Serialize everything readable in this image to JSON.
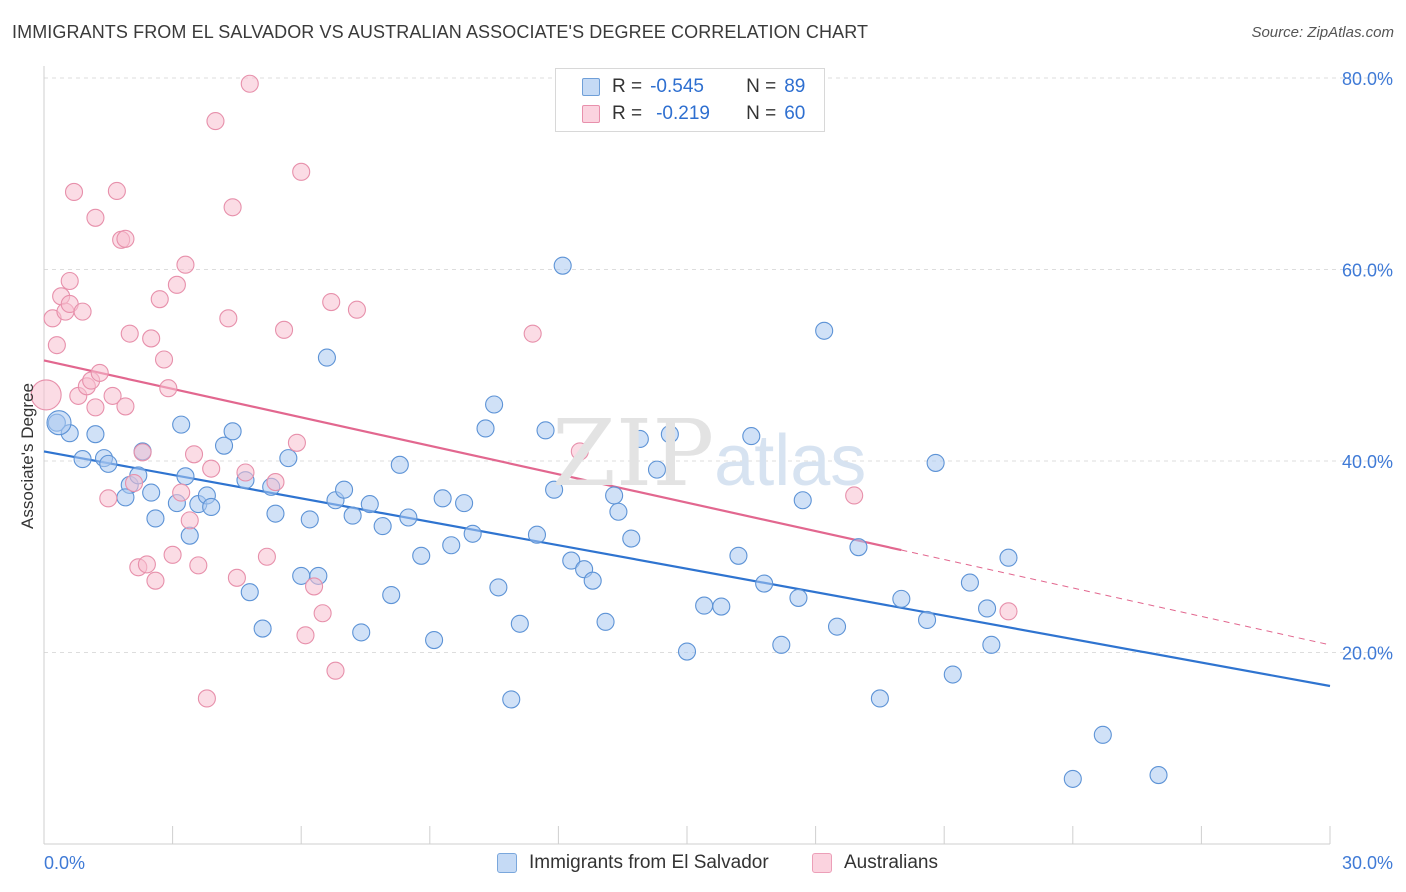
{
  "title": "IMMIGRANTS FROM EL SALVADOR VS AUSTRALIAN ASSOCIATE'S DEGREE CORRELATION CHART",
  "source": "Source: ZipAtlas.com",
  "watermark": {
    "zip": "ZIP",
    "atlas": "atlas"
  },
  "legend": {
    "r_label": "R =",
    "n_label": "N =",
    "rows": [
      {
        "r": "-0.545",
        "n": "89",
        "color": "#a9c8f0",
        "border": "#6f9fd8"
      },
      {
        "r": "-0.219",
        "n": "60",
        "color": "#f7c0d0",
        "border": "#e890ac"
      }
    ]
  },
  "bottom_legend": [
    {
      "label": "Immigrants from El Salvador",
      "color": "#c5daf5",
      "border": "#7aa7dc"
    },
    {
      "label": "Australians",
      "color": "#fbd3df",
      "border": "#ec9fb8"
    }
  ],
  "chart_data": {
    "type": "scatter",
    "title": "IMMIGRANTS FROM EL SALVADOR VS AUSTRALIAN ASSOCIATE'S DEGREE CORRELATION CHART",
    "xlabel": "",
    "ylabel": "Associate's Degree",
    "xlim": [
      0,
      30
    ],
    "ylim": [
      0,
      80
    ],
    "x_tick_labels": [
      "0.0%",
      "30.0%"
    ],
    "y_tick_labels": [
      "20.0%",
      "40.0%",
      "60.0%",
      "80.0%"
    ],
    "y_ticks": [
      20,
      40,
      60,
      80
    ],
    "grid": true,
    "series": [
      {
        "name": "Immigrants from El Salvador",
        "color": "#a9c8f0",
        "stroke": "#5d93d6",
        "trend_color": "#2f74d0",
        "trend": {
          "x0": 0,
          "y0": 41.0,
          "x1": 30,
          "y1": 16.5,
          "dash_from": null
        },
        "points": [
          [
            0.3,
            44.0
          ],
          [
            0.6,
            42.9
          ],
          [
            0.9,
            40.2
          ],
          [
            1.2,
            42.8
          ],
          [
            1.4,
            40.3
          ],
          [
            1.5,
            39.7
          ],
          [
            2.0,
            37.5
          ],
          [
            2.2,
            38.5
          ],
          [
            1.9,
            36.2
          ],
          [
            2.5,
            36.7
          ],
          [
            2.3,
            41.0
          ],
          [
            2.6,
            34.0
          ],
          [
            3.2,
            43.8
          ],
          [
            3.3,
            38.4
          ],
          [
            3.1,
            35.6
          ],
          [
            3.4,
            32.2
          ],
          [
            3.6,
            35.5
          ],
          [
            3.8,
            36.4
          ],
          [
            3.9,
            35.2
          ],
          [
            4.2,
            41.6
          ],
          [
            4.4,
            43.1
          ],
          [
            4.7,
            38.0
          ],
          [
            4.8,
            26.3
          ],
          [
            5.3,
            37.3
          ],
          [
            5.4,
            34.5
          ],
          [
            5.1,
            22.5
          ],
          [
            5.7,
            40.3
          ],
          [
            6.0,
            28.0
          ],
          [
            6.2,
            33.9
          ],
          [
            6.4,
            28.0
          ],
          [
            6.6,
            50.8
          ],
          [
            6.8,
            35.9
          ],
          [
            7.0,
            37.0
          ],
          [
            7.2,
            34.3
          ],
          [
            7.4,
            22.1
          ],
          [
            7.6,
            35.5
          ],
          [
            7.9,
            33.2
          ],
          [
            8.1,
            26.0
          ],
          [
            8.3,
            39.6
          ],
          [
            8.5,
            34.1
          ],
          [
            8.8,
            30.1
          ],
          [
            9.1,
            21.3
          ],
          [
            9.3,
            36.1
          ],
          [
            9.5,
            31.2
          ],
          [
            9.8,
            35.6
          ],
          [
            10.0,
            32.4
          ],
          [
            10.3,
            43.4
          ],
          [
            10.5,
            45.9
          ],
          [
            10.6,
            26.8
          ],
          [
            10.9,
            15.1
          ],
          [
            11.1,
            23.0
          ],
          [
            11.5,
            32.3
          ],
          [
            11.7,
            43.2
          ],
          [
            11.9,
            37.0
          ],
          [
            12.1,
            60.4
          ],
          [
            12.3,
            29.6
          ],
          [
            12.6,
            28.7
          ],
          [
            12.8,
            27.5
          ],
          [
            13.1,
            23.2
          ],
          [
            13.3,
            36.4
          ],
          [
            13.4,
            34.7
          ],
          [
            13.7,
            31.9
          ],
          [
            13.9,
            42.3
          ],
          [
            14.3,
            39.1
          ],
          [
            14.6,
            42.8
          ],
          [
            15.0,
            20.1
          ],
          [
            15.4,
            24.9
          ],
          [
            15.8,
            24.8
          ],
          [
            16.2,
            30.1
          ],
          [
            16.5,
            42.6
          ],
          [
            16.8,
            27.2
          ],
          [
            17.2,
            20.8
          ],
          [
            17.6,
            25.7
          ],
          [
            17.7,
            35.9
          ],
          [
            18.2,
            53.6
          ],
          [
            18.5,
            22.7
          ],
          [
            19.0,
            31.0
          ],
          [
            19.5,
            15.2
          ],
          [
            20.0,
            25.6
          ],
          [
            20.6,
            23.4
          ],
          [
            20.8,
            39.8
          ],
          [
            21.2,
            17.7
          ],
          [
            21.6,
            27.3
          ],
          [
            22.1,
            20.8
          ],
          [
            22.0,
            24.6
          ],
          [
            22.5,
            29.9
          ],
          [
            24.0,
            6.8
          ],
          [
            24.7,
            11.4
          ],
          [
            26.0,
            7.2
          ]
        ]
      },
      {
        "name": "Australians",
        "color": "#f7c0d0",
        "stroke": "#e790ab",
        "trend_color": "#e2678f",
        "trend": {
          "x0": 0,
          "y0": 50.5,
          "x1": 20.0,
          "y1": 30.7,
          "dash_to": 30,
          "dash_y": 20.8
        },
        "points": [
          [
            0.2,
            54.9
          ],
          [
            0.3,
            52.1
          ],
          [
            0.4,
            57.2
          ],
          [
            0.5,
            55.6
          ],
          [
            0.6,
            56.4
          ],
          [
            0.6,
            58.8
          ],
          [
            0.7,
            68.1
          ],
          [
            0.8,
            46.8
          ],
          [
            0.9,
            55.6
          ],
          [
            1.0,
            47.8
          ],
          [
            1.1,
            48.4
          ],
          [
            1.2,
            65.4
          ],
          [
            1.2,
            45.6
          ],
          [
            1.3,
            49.2
          ],
          [
            1.5,
            36.1
          ],
          [
            1.6,
            46.8
          ],
          [
            1.7,
            68.2
          ],
          [
            1.8,
            63.1
          ],
          [
            1.9,
            63.2
          ],
          [
            1.9,
            45.7
          ],
          [
            2.0,
            53.3
          ],
          [
            2.1,
            37.7
          ],
          [
            2.2,
            28.9
          ],
          [
            2.3,
            40.9
          ],
          [
            2.4,
            29.2
          ],
          [
            2.5,
            52.8
          ],
          [
            2.6,
            27.5
          ],
          [
            2.7,
            56.9
          ],
          [
            2.8,
            50.6
          ],
          [
            2.9,
            47.6
          ],
          [
            3.0,
            30.2
          ],
          [
            3.1,
            58.4
          ],
          [
            3.2,
            36.7
          ],
          [
            3.3,
            60.5
          ],
          [
            3.4,
            33.8
          ],
          [
            3.5,
            40.7
          ],
          [
            3.6,
            29.1
          ],
          [
            3.8,
            15.2
          ],
          [
            3.9,
            39.2
          ],
          [
            4.0,
            75.5
          ],
          [
            4.3,
            54.9
          ],
          [
            4.4,
            66.5
          ],
          [
            4.5,
            27.8
          ],
          [
            4.7,
            38.8
          ],
          [
            4.8,
            79.4
          ],
          [
            5.2,
            30.0
          ],
          [
            5.4,
            37.8
          ],
          [
            5.6,
            53.7
          ],
          [
            5.9,
            41.9
          ],
          [
            6.0,
            70.2
          ],
          [
            6.1,
            21.8
          ],
          [
            6.3,
            26.9
          ],
          [
            6.5,
            24.1
          ],
          [
            6.7,
            56.6
          ],
          [
            6.8,
            18.1
          ],
          [
            7.3,
            55.8
          ],
          [
            11.4,
            53.3
          ],
          [
            12.5,
            41.0
          ],
          [
            18.9,
            36.4
          ],
          [
            22.5,
            24.3
          ]
        ]
      }
    ]
  }
}
